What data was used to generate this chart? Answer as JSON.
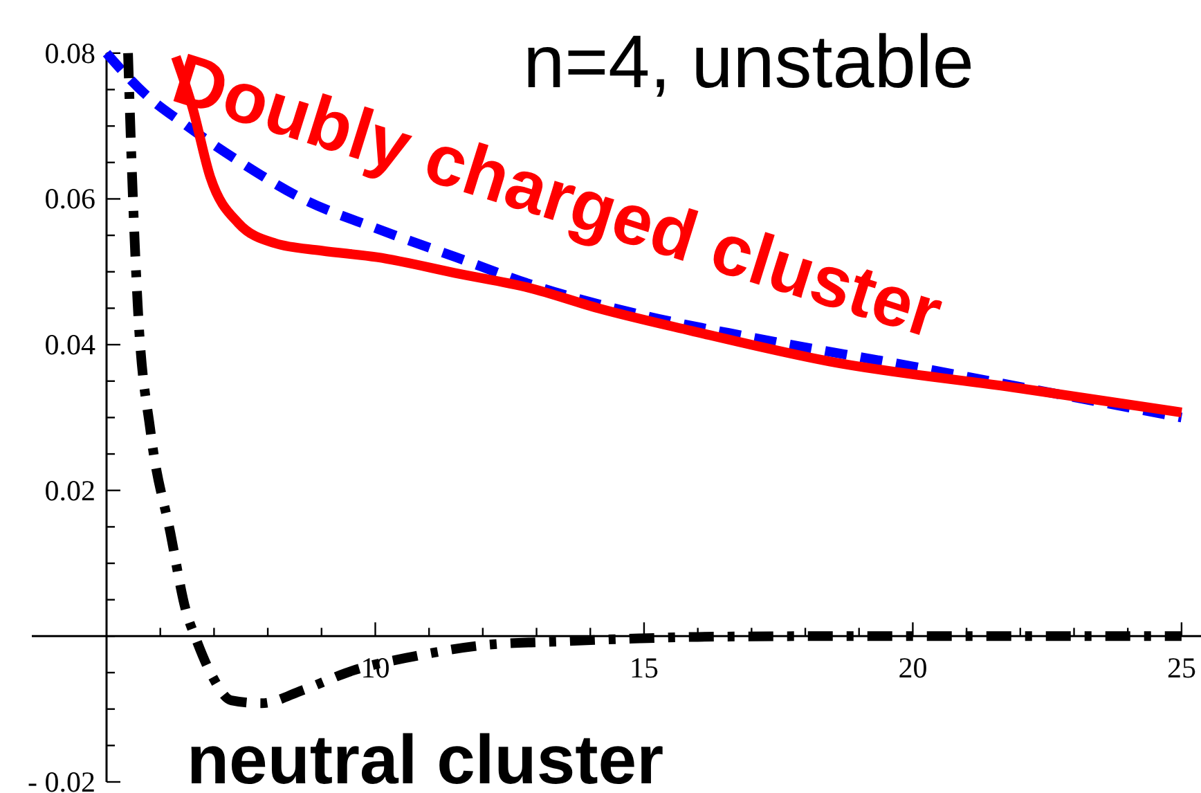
{
  "chart_data": {
    "type": "line",
    "title": "n=4, unstable",
    "xlim": [
      5,
      25.3
    ],
    "ylim": [
      -0.02,
      0.08
    ],
    "xticks": [
      {
        "value": 6,
        "label": null
      },
      {
        "value": 7,
        "label": null
      },
      {
        "value": 8,
        "label": null
      },
      {
        "value": 9,
        "label": null
      },
      10,
      {
        "value": 11,
        "label": null
      },
      {
        "value": 12,
        "label": null
      },
      {
        "value": 13,
        "label": null
      },
      {
        "value": 14,
        "label": null
      },
      15,
      {
        "value": 16,
        "label": null
      },
      {
        "value": 17,
        "label": null
      },
      {
        "value": 18,
        "label": null
      },
      {
        "value": 19,
        "label": null
      },
      20,
      {
        "value": 21,
        "label": null
      },
      {
        "value": 22,
        "label": null
      },
      {
        "value": 23,
        "label": null
      },
      {
        "value": 24,
        "label": null
      },
      25
    ],
    "yticks": [
      {
        "value": -0.02,
        "label": "- 0.02"
      },
      {
        "value": -0.015,
        "label": null
      },
      {
        "value": -0.01,
        "label": null
      },
      {
        "value": -0.005,
        "label": null
      },
      {
        "value": 0,
        "label": null
      },
      {
        "value": 0.005,
        "label": null
      },
      {
        "value": 0.01,
        "label": null
      },
      {
        "value": 0.015,
        "label": null
      },
      {
        "value": 0.02,
        "label": "0.02"
      },
      {
        "value": 0.025,
        "label": null
      },
      {
        "value": 0.03,
        "label": null
      },
      {
        "value": 0.035,
        "label": null
      },
      {
        "value": 0.04,
        "label": "0.04"
      },
      {
        "value": 0.045,
        "label": null
      },
      {
        "value": 0.05,
        "label": null
      },
      {
        "value": 0.055,
        "label": null
      },
      {
        "value": 0.06,
        "label": "0.06"
      },
      {
        "value": 0.065,
        "label": null
      },
      {
        "value": 0.07,
        "label": null
      },
      {
        "value": 0.075,
        "label": null
      },
      {
        "value": 0.08,
        "label": "0.08"
      }
    ],
    "grid": false,
    "marker": "none",
    "series": [
      {
        "color": "#0000ff",
        "line_style": "dashed",
        "x": [
          5,
          5.7,
          6.5,
          7.5,
          8.65,
          10,
          11.5,
          13,
          15,
          17,
          20,
          22.5,
          25
        ],
        "values": [
          0.08,
          0.0745,
          0.07,
          0.065,
          0.06,
          0.056,
          0.052,
          0.048,
          0.044,
          0.041,
          0.037,
          0.0335,
          0.03
        ]
      },
      {
        "name": "Doubly charged cluster",
        "color": "#ff0000",
        "line_style": "solid",
        "x": [
          6.29,
          6.6,
          6.93,
          7.45,
          8.14,
          9,
          10.03,
          11.57,
          12.86,
          14.15,
          15.88,
          18.45,
          22,
          25
        ],
        "values": [
          0.0795,
          0.0725,
          0.063,
          0.0567,
          0.0539,
          0.0529,
          0.052,
          0.0497,
          0.0478,
          0.045,
          0.0419,
          0.0377,
          0.034,
          0.0307
        ]
      },
      {
        "name": "neutral cluster",
        "color": "#000000",
        "line_style": "dashdot",
        "x": [
          5.4,
          5.46,
          5.58,
          5.82,
          6.19,
          6.47,
          6.67,
          6.96,
          7.32,
          7.89,
          8.65,
          9.59,
          10.7,
          12.07,
          13.5,
          14.92,
          16,
          18,
          20,
          25
        ],
        "values": [
          0.08,
          0.0663,
          0.0454,
          0.028,
          0.0141,
          0.0037,
          -0.0005,
          -0.0054,
          -0.0088,
          -0.0092,
          -0.0074,
          -0.0047,
          -0.0028,
          -0.0012,
          -0.0007,
          -0.0003,
          -0.0001,
          0,
          0,
          0
        ]
      }
    ]
  }
}
